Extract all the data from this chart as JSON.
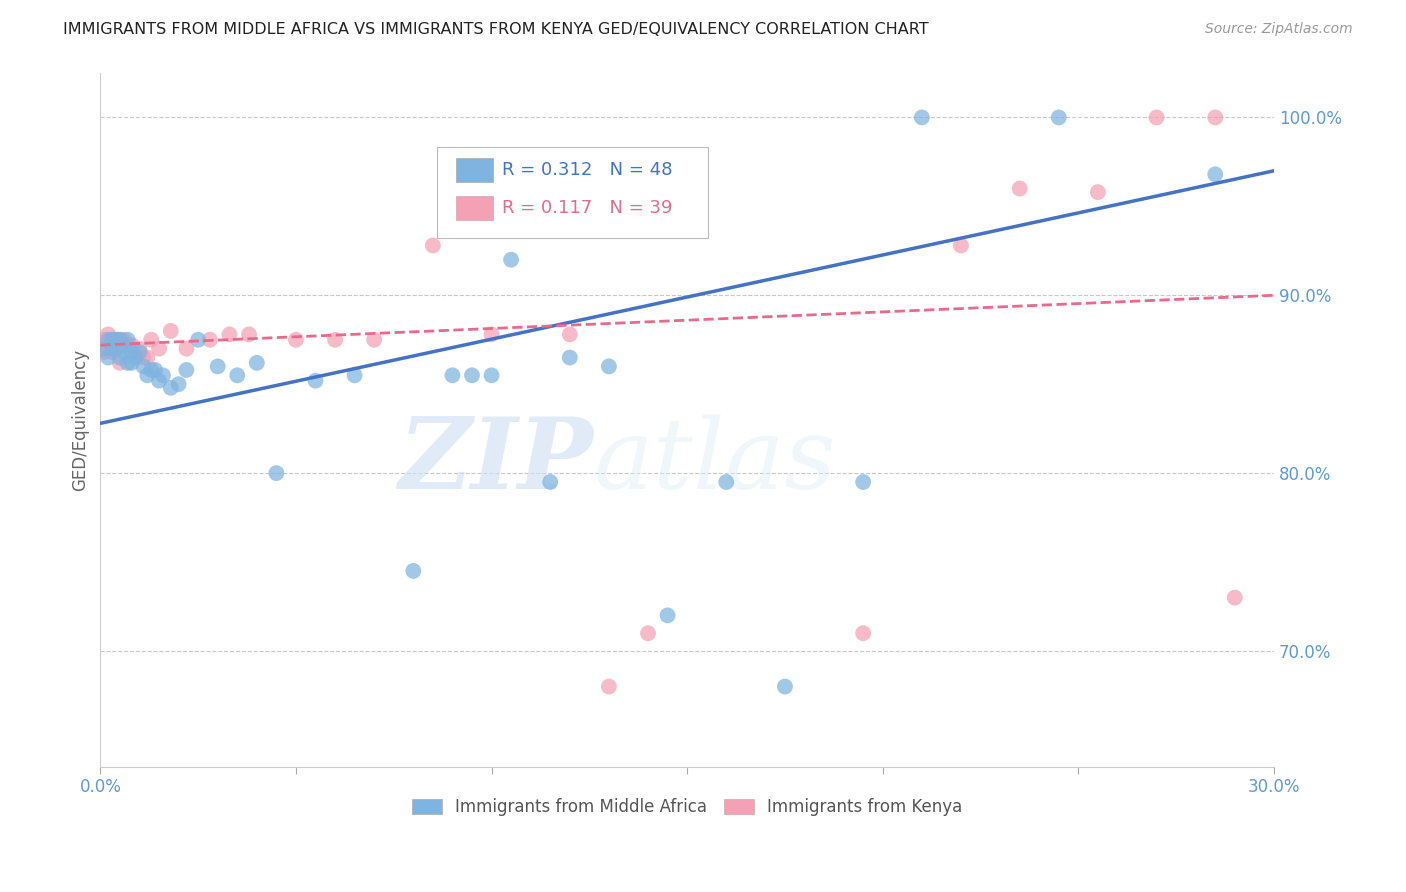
{
  "title": "IMMIGRANTS FROM MIDDLE AFRICA VS IMMIGRANTS FROM KENYA GED/EQUIVALENCY CORRELATION CHART",
  "source": "Source: ZipAtlas.com",
  "ylabel": "GED/Equivalency",
  "legend_label_blue": "Immigrants from Middle Africa",
  "legend_label_pink": "Immigrants from Kenya",
  "R_blue": 0.312,
  "N_blue": 48,
  "R_pink": 0.117,
  "N_pink": 39,
  "xlim": [
    0.0,
    0.3
  ],
  "ylim": [
    0.635,
    1.025
  ],
  "xticks": [
    0.0,
    0.05,
    0.1,
    0.15,
    0.2,
    0.25,
    0.3
  ],
  "xtick_labels": [
    "0.0%",
    "",
    "",
    "",
    "",
    "",
    "30.0%"
  ],
  "yticks_right": [
    0.7,
    0.8,
    0.9,
    1.0
  ],
  "ytick_labels_right": [
    "70.0%",
    "80.0%",
    "90.0%",
    "100.0%"
  ],
  "color_blue": "#7fb3e0",
  "color_pink": "#f4a0b5",
  "color_blue_line": "#4472c4",
  "color_pink_line": "#e8698a",
  "color_axis_text": "#5b9bd5",
  "watermark_zip": "ZIP",
  "watermark_atlas": "atlas",
  "blue_x": [
    0.001,
    0.002,
    0.002,
    0.003,
    0.003,
    0.004,
    0.004,
    0.005,
    0.005,
    0.006,
    0.006,
    0.007,
    0.007,
    0.008,
    0.008,
    0.009,
    0.01,
    0.011,
    0.012,
    0.013,
    0.014,
    0.015,
    0.016,
    0.018,
    0.02,
    0.022,
    0.025,
    0.03,
    0.035,
    0.04,
    0.045,
    0.055,
    0.065,
    0.08,
    0.09,
    0.095,
    0.1,
    0.105,
    0.115,
    0.12,
    0.13,
    0.145,
    0.16,
    0.175,
    0.195,
    0.21,
    0.245,
    0.285
  ],
  "blue_y": [
    0.87,
    0.875,
    0.865,
    0.875,
    0.87,
    0.875,
    0.87,
    0.875,
    0.865,
    0.868,
    0.872,
    0.862,
    0.875,
    0.868,
    0.862,
    0.865,
    0.868,
    0.86,
    0.855,
    0.858,
    0.858,
    0.852,
    0.855,
    0.848,
    0.85,
    0.858,
    0.875,
    0.86,
    0.855,
    0.862,
    0.8,
    0.852,
    0.855,
    0.745,
    0.855,
    0.855,
    0.855,
    0.92,
    0.795,
    0.865,
    0.86,
    0.72,
    0.795,
    0.68,
    0.795,
    1.0,
    1.0,
    0.968
  ],
  "pink_x": [
    0.001,
    0.001,
    0.002,
    0.002,
    0.003,
    0.003,
    0.004,
    0.004,
    0.005,
    0.005,
    0.006,
    0.007,
    0.008,
    0.009,
    0.01,
    0.011,
    0.012,
    0.013,
    0.015,
    0.018,
    0.022,
    0.028,
    0.033,
    0.038,
    0.05,
    0.06,
    0.07,
    0.085,
    0.1,
    0.12,
    0.13,
    0.14,
    0.195,
    0.22,
    0.235,
    0.255,
    0.27,
    0.285,
    0.29
  ],
  "pink_y": [
    0.875,
    0.868,
    0.878,
    0.87,
    0.875,
    0.868,
    0.875,
    0.87,
    0.875,
    0.862,
    0.875,
    0.872,
    0.872,
    0.868,
    0.87,
    0.865,
    0.865,
    0.875,
    0.87,
    0.88,
    0.87,
    0.875,
    0.878,
    0.878,
    0.875,
    0.875,
    0.875,
    0.928,
    0.878,
    0.878,
    0.68,
    0.71,
    0.71,
    0.928,
    0.96,
    0.958,
    1.0,
    1.0,
    0.73
  ],
  "blue_trendline_x": [
    0.0,
    0.3
  ],
  "blue_trendline_y": [
    0.828,
    0.97
  ],
  "pink_trendline_x": [
    0.0,
    0.3
  ],
  "pink_trendline_y": [
    0.872,
    0.9
  ]
}
